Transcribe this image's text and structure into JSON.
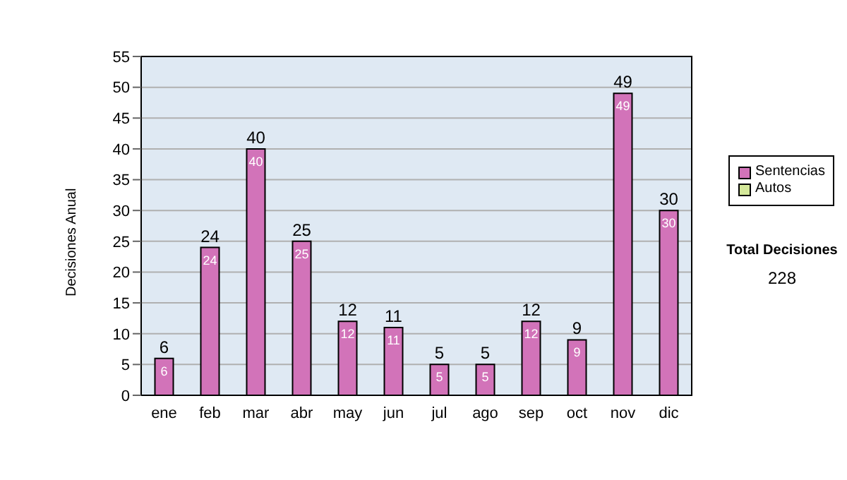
{
  "chart_data": {
    "type": "bar",
    "stacked": true,
    "ylabel": "Decisiones Anual",
    "categories": [
      "ene",
      "feb",
      "mar",
      "abr",
      "may",
      "jun",
      "jul",
      "ago",
      "sep",
      "oct",
      "nov",
      "dic"
    ],
    "series": [
      {
        "name": "Sentencias",
        "color": "#d273b9",
        "values": [
          6,
          24,
          40,
          25,
          12,
          11,
          5,
          5,
          12,
          9,
          49,
          30
        ],
        "value_labels": [
          "6",
          "24",
          "40",
          "25",
          "12",
          "11",
          "5",
          "5",
          "12",
          "9",
          "49",
          "30"
        ]
      },
      {
        "name": "Autos",
        "color": "#d4e89a",
        "values": [
          0,
          0,
          0,
          0,
          0,
          0,
          0,
          0,
          0,
          0,
          0,
          0
        ]
      }
    ],
    "totals": [
      "6",
      "24",
      "40",
      "25",
      "12",
      "11",
      "5",
      "5",
      "12",
      "9",
      "49",
      "30"
    ],
    "ylim": [
      0,
      55
    ],
    "yticks": [
      0,
      5,
      10,
      15,
      20,
      25,
      30,
      35,
      40,
      45,
      50,
      55
    ],
    "grid": "y",
    "legend": "right",
    "annotations": [
      "Total Decisiones",
      "228"
    ]
  }
}
